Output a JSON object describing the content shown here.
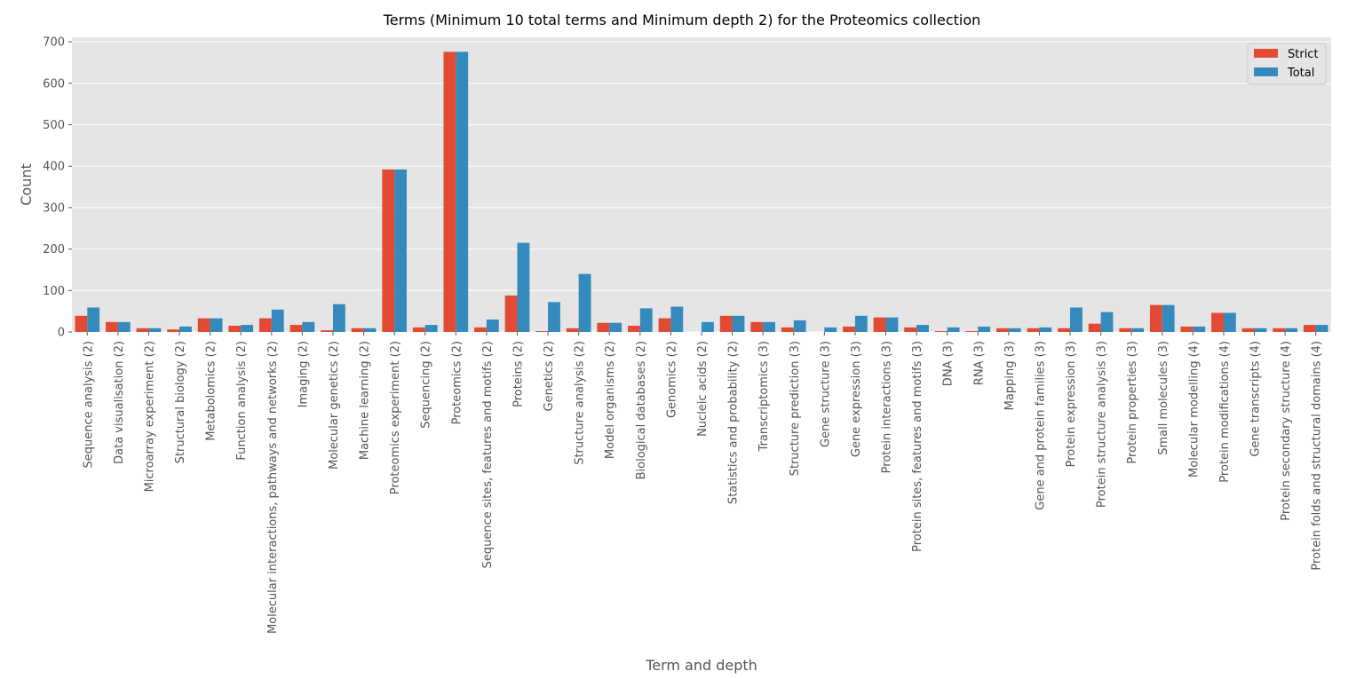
{
  "chart_data": {
    "type": "bar",
    "title": "Terms (Minimum 10 total terms and Minimum depth 2) for the Proteomics collection",
    "xlabel": "Term and depth",
    "ylabel": "Count",
    "ylim": [
      0,
      700
    ],
    "yticks": [
      0,
      100,
      200,
      300,
      400,
      500,
      600,
      700
    ],
    "grid": true,
    "legend_position": "top-right",
    "colors": {
      "Strict": "#E24A33",
      "Total": "#348ABD",
      "background": "#E5E5E5",
      "grid": "#FFFFFF"
    },
    "categories": [
      "Sequence analysis (2)",
      "Data visualisation (2)",
      "Microarray experiment (2)",
      "Structural biology (2)",
      "Metabolomics (2)",
      "Function analysis (2)",
      "Molecular interactions, pathways and networks (2)",
      "Imaging (2)",
      "Molecular genetics (2)",
      "Machine learning (2)",
      "Proteomics experiment (2)",
      "Sequencing (2)",
      "Proteomics (2)",
      "Sequence sites, features and motifs (2)",
      "Proteins (2)",
      "Genetics (2)",
      "Structure analysis (2)",
      "Model organisms (2)",
      "Biological databases (2)",
      "Genomics (2)",
      "Nucleic acids (2)",
      "Statistics and probability (2)",
      "Transcriptomics (3)",
      "Structure prediction (3)",
      "Gene structure (3)",
      "Gene expression (3)",
      "Protein interactions (3)",
      "Protein sites, features and motifs (3)",
      "DNA (3)",
      "RNA (3)",
      "Mapping (3)",
      "Gene and protein families (3)",
      "Protein expression (3)",
      "Protein structure analysis (3)",
      "Protein properties (3)",
      "Small molecules (3)",
      "Molecular modelling (4)",
      "Protein modifications (4)",
      "Gene transcripts (4)",
      "Protein secondary structure (4)",
      "Protein folds and structural domains (4)"
    ],
    "series": [
      {
        "name": "Strict",
        "values": [
          39,
          24,
          9,
          6,
          33,
          15,
          33,
          17,
          4,
          9,
          392,
          11,
          676,
          11,
          88,
          2,
          9,
          22,
          15,
          33,
          0,
          39,
          24,
          11,
          0,
          13,
          35,
          11,
          2,
          2,
          9,
          9,
          9,
          20,
          9,
          65,
          13,
          46,
          9,
          9,
          17
        ]
      },
      {
        "name": "Total",
        "values": [
          59,
          24,
          9,
          13,
          33,
          17,
          54,
          24,
          67,
          9,
          392,
          17,
          676,
          30,
          215,
          72,
          140,
          22,
          57,
          61,
          24,
          39,
          24,
          28,
          11,
          39,
          35,
          17,
          11,
          13,
          9,
          11,
          59,
          48,
          9,
          65,
          13,
          46,
          9,
          9,
          17
        ]
      }
    ]
  }
}
